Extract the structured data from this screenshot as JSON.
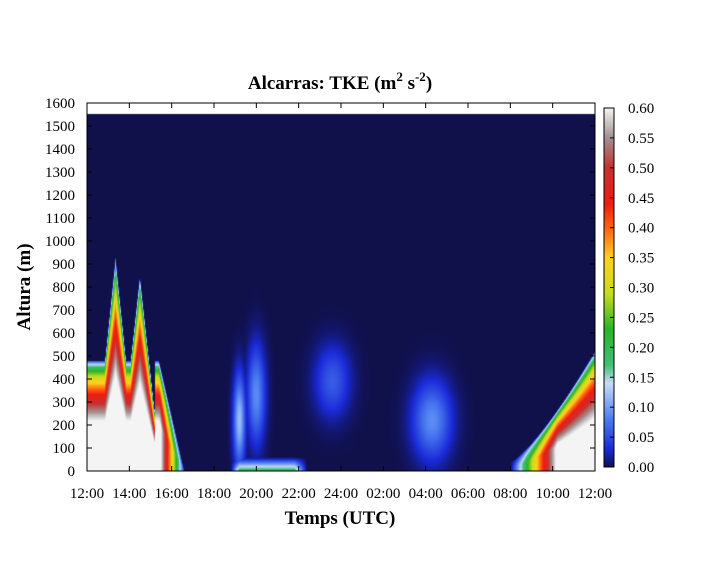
{
  "chart_data": {
    "type": "heatmap",
    "title": "Alcarras: TKE (m",
    "title_sup1": "2",
    "title_mid": " s",
    "title_sup2": "-2",
    "title_end": ")",
    "xlabel": "Temps (UTC)",
    "ylabel": "Altura (m)",
    "x_ticks": [
      "12:00",
      "14:00",
      "16:00",
      "18:00",
      "20:00",
      "22:00",
      "24:00",
      "02:00",
      "04:00",
      "06:00",
      "08:00",
      "10:00",
      "12:00"
    ],
    "x_range_hours": [
      0,
      24
    ],
    "y_ticks": [
      0,
      100,
      200,
      300,
      400,
      500,
      600,
      700,
      800,
      900,
      1000,
      1100,
      1200,
      1300,
      1400,
      1500,
      1600
    ],
    "ylim": [
      0,
      1600
    ],
    "data_top_m": 1550,
    "colorbar": {
      "min": 0.0,
      "max": 0.6,
      "ticks": [
        "0.00",
        "0.05",
        "0.10",
        "0.15",
        "0.20",
        "0.25",
        "0.30",
        "0.35",
        "0.40",
        "0.45",
        "0.50",
        "0.55",
        "0.60"
      ],
      "stops": [
        {
          "v": 0.0,
          "color": "#10104a"
        },
        {
          "v": 0.03,
          "color": "#1a2ad8"
        },
        {
          "v": 0.08,
          "color": "#4a7cf0"
        },
        {
          "v": 0.14,
          "color": "#c8dcf8"
        },
        {
          "v": 0.17,
          "color": "#40c078"
        },
        {
          "v": 0.23,
          "color": "#28b428"
        },
        {
          "v": 0.29,
          "color": "#c8dc18"
        },
        {
          "v": 0.35,
          "color": "#ffd020"
        },
        {
          "v": 0.4,
          "color": "#ff6010"
        },
        {
          "v": 0.44,
          "color": "#ee1c10"
        },
        {
          "v": 0.5,
          "color": "#c83030"
        },
        {
          "v": 0.55,
          "color": "#a09090"
        },
        {
          "v": 0.6,
          "color": "#f4f4f4"
        }
      ]
    },
    "features": [
      {
        "kind": "convective_peak",
        "t_center": 1.35,
        "half_width": 0.7,
        "top_m": 930
      },
      {
        "kind": "convective_peak",
        "t_center": 2.5,
        "half_width": 0.65,
        "top_m": 850
      },
      {
        "kind": "decay_tail",
        "t_start": 0.0,
        "t_end": 4.6,
        "note": "values 0.60 near surface, fading by 16:30"
      },
      {
        "kind": "blob",
        "t_center": 7.2,
        "z_center": 220,
        "t_radius": 0.2,
        "z_radius": 140,
        "peak": 0.12
      },
      {
        "kind": "blob",
        "t_center": 8.0,
        "z_center": 330,
        "t_radius": 0.3,
        "z_radius": 150,
        "peak": 0.09
      },
      {
        "kind": "blob",
        "t_center": 11.6,
        "z_center": 390,
        "t_radius": 0.6,
        "z_radius": 110,
        "peak": 0.06
      },
      {
        "kind": "blob",
        "t_center": 16.3,
        "z_center": 220,
        "t_radius": 0.65,
        "z_radius": 120,
        "peak": 0.09
      },
      {
        "kind": "surface_layer",
        "t_start": 6.8,
        "t_end": 10.4,
        "top_m": 60,
        "peak": 0.2
      },
      {
        "kind": "morning_growth",
        "t_start": 20.0,
        "t_end": 24.0,
        "top_m_end": 520
      }
    ]
  }
}
